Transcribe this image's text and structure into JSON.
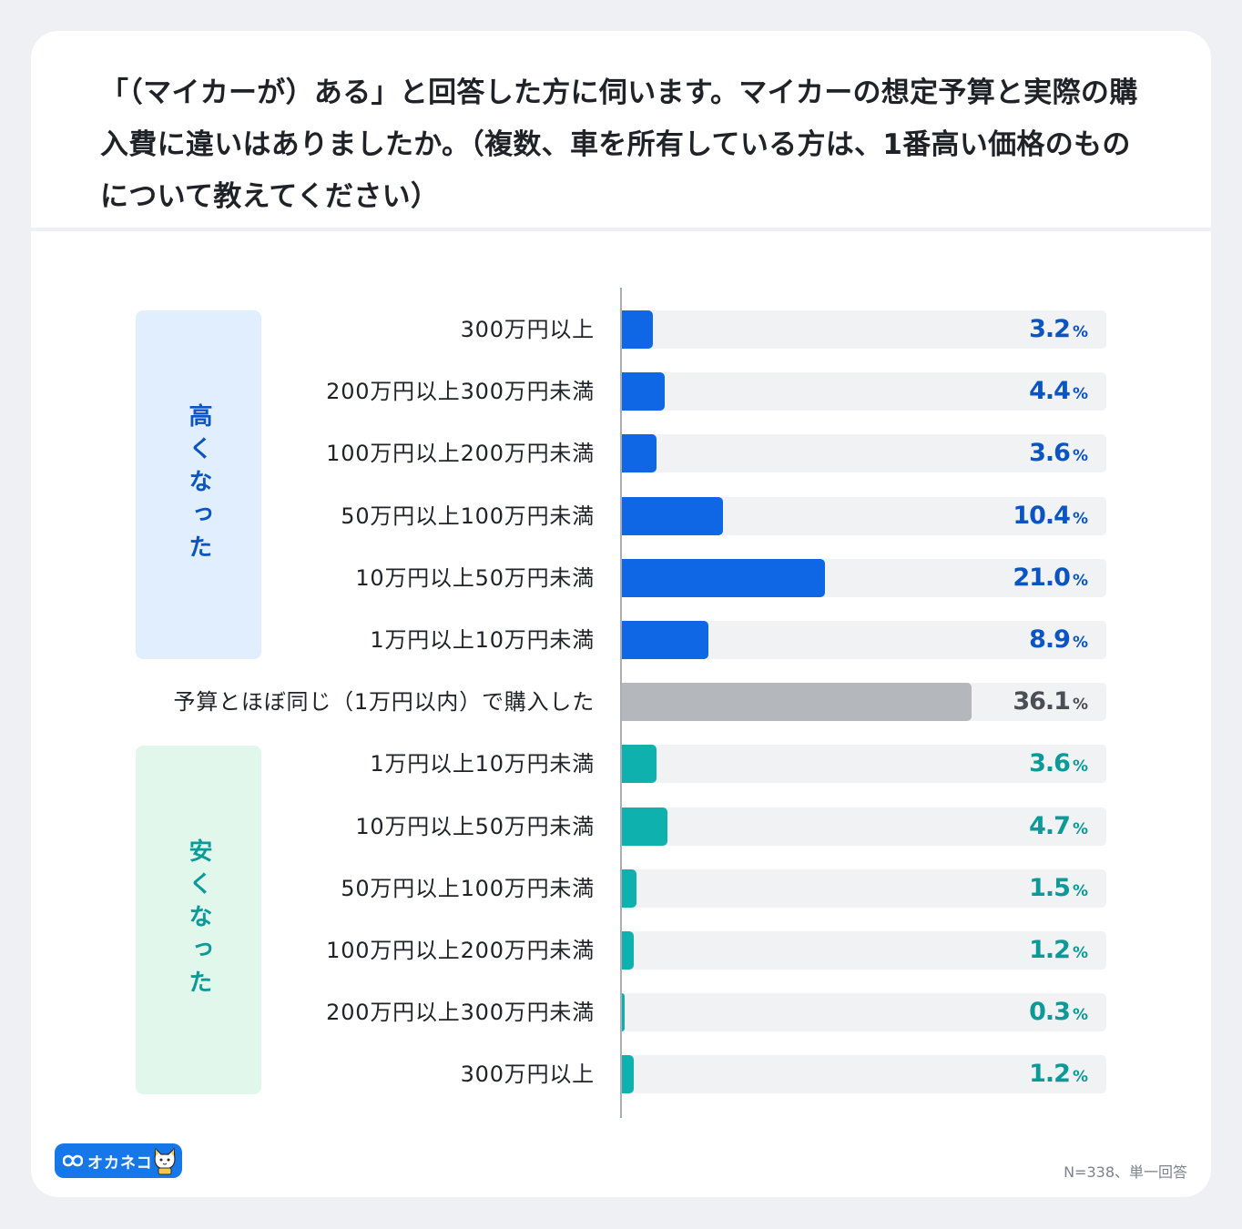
{
  "title": "「（マイカーが）ある」と回答した方に伺います。マイカーの想定予算と実際の購入費に違いはありましたか。（複数、車を所有している方は、1番高い価格のものについて教えてください）",
  "groups": {
    "higher": "高くなった",
    "lower": "安くなった"
  },
  "percent_suffix": "%",
  "footnote": "N=338、単一回答",
  "logo": {
    "text": "オカネコ"
  },
  "colors": {
    "higher": "#1067e6",
    "same": "#b4b7bb",
    "lower": "#0fb1ae",
    "higher_text": "#0b55c3",
    "same_text": "#4a4f55",
    "lower_text": "#0b9a97"
  },
  "chart_data": {
    "type": "bar",
    "orientation": "horizontal",
    "xlim": [
      0,
      50
    ],
    "categories": [
      "300万円以上",
      "200万円以上300万円未満",
      "100万円以上200万円未満",
      "50万円以上100万円未満",
      "10万円以上50万円未満",
      "1万円以上10万円未満",
      "予算とほぼ同じ（1万円以内）で購入した",
      "1万円以上10万円未満",
      "10万円以上50万円未満",
      "50万円以上100万円未満",
      "100万円以上200万円未満",
      "200万円以上300万円未満",
      "300万円以上"
    ],
    "values": [
      3.2,
      4.4,
      3.6,
      10.4,
      21.0,
      8.9,
      36.1,
      3.6,
      4.7,
      1.5,
      1.2,
      0.3,
      1.2
    ],
    "value_labels": [
      "3.2",
      "4.4",
      "3.6",
      "10.4",
      "21.0",
      "8.9",
      "36.1",
      "3.6",
      "4.7",
      "1.5",
      "1.2",
      "0.3",
      "1.2"
    ],
    "row_groups": [
      "higher",
      "higher",
      "higher",
      "higher",
      "higher",
      "higher",
      "same",
      "lower",
      "lower",
      "lower",
      "lower",
      "lower",
      "lower"
    ]
  }
}
